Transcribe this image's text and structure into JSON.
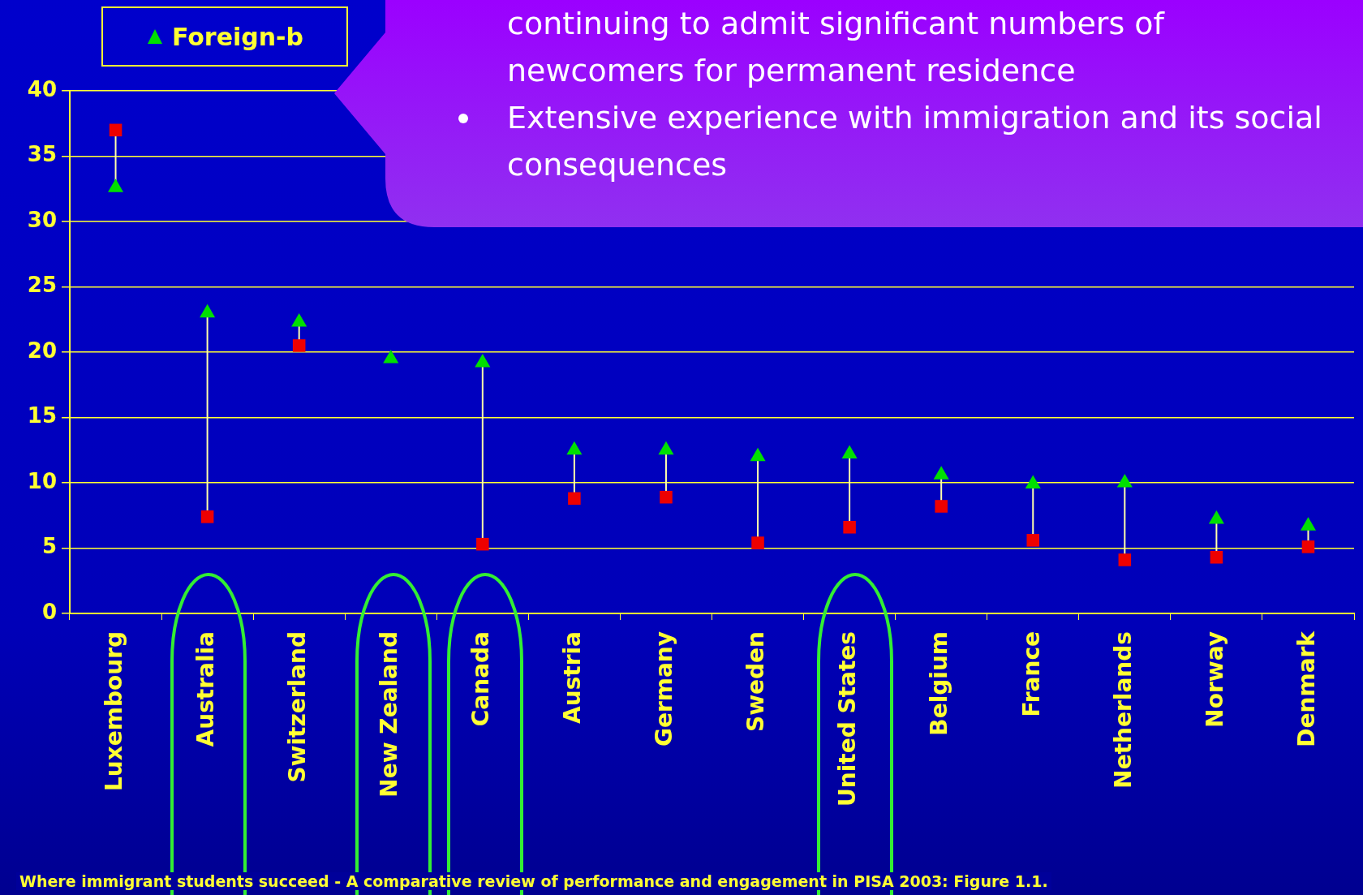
{
  "chart_data": {
    "type": "scatter",
    "categories": [
      "Luxembourg",
      "Australia",
      "Switzerland",
      "New Zealand",
      "Canada",
      "Austria",
      "Germany",
      "Sweden",
      "United States",
      "Belgium",
      "France",
      "Netherlands",
      "Norway",
      "Denmark"
    ],
    "series": [
      {
        "name": "Foreign-b",
        "color": "#00e000",
        "marker": "triangle",
        "values": [
          32.6,
          23.0,
          22.3,
          19.5,
          19.2,
          12.5,
          12.5,
          12.0,
          12.2,
          10.6,
          9.9,
          10.0,
          7.2,
          6.7
        ]
      },
      {
        "color": "#ee0000",
        "marker": "square",
        "values": [
          37.0,
          7.4,
          20.5,
          null,
          5.3,
          8.8,
          8.9,
          5.4,
          6.6,
          8.2,
          5.6,
          4.1,
          4.3,
          5.1
        ]
      }
    ],
    "ylim": [
      0,
      40
    ],
    "yticks": [
      0,
      5,
      10,
      15,
      20,
      25,
      30,
      35,
      40
    ],
    "grid": "y",
    "legend": "top left",
    "annotations": [
      "continuing to admit significant numbers of newcomers for permanent residence",
      "Extensive experience with immigration and its social consequences",
      "Where immigrant students succeed - A comparative review of performance and engagement in PISA 2003: Figure 1.1."
    ]
  }
}
